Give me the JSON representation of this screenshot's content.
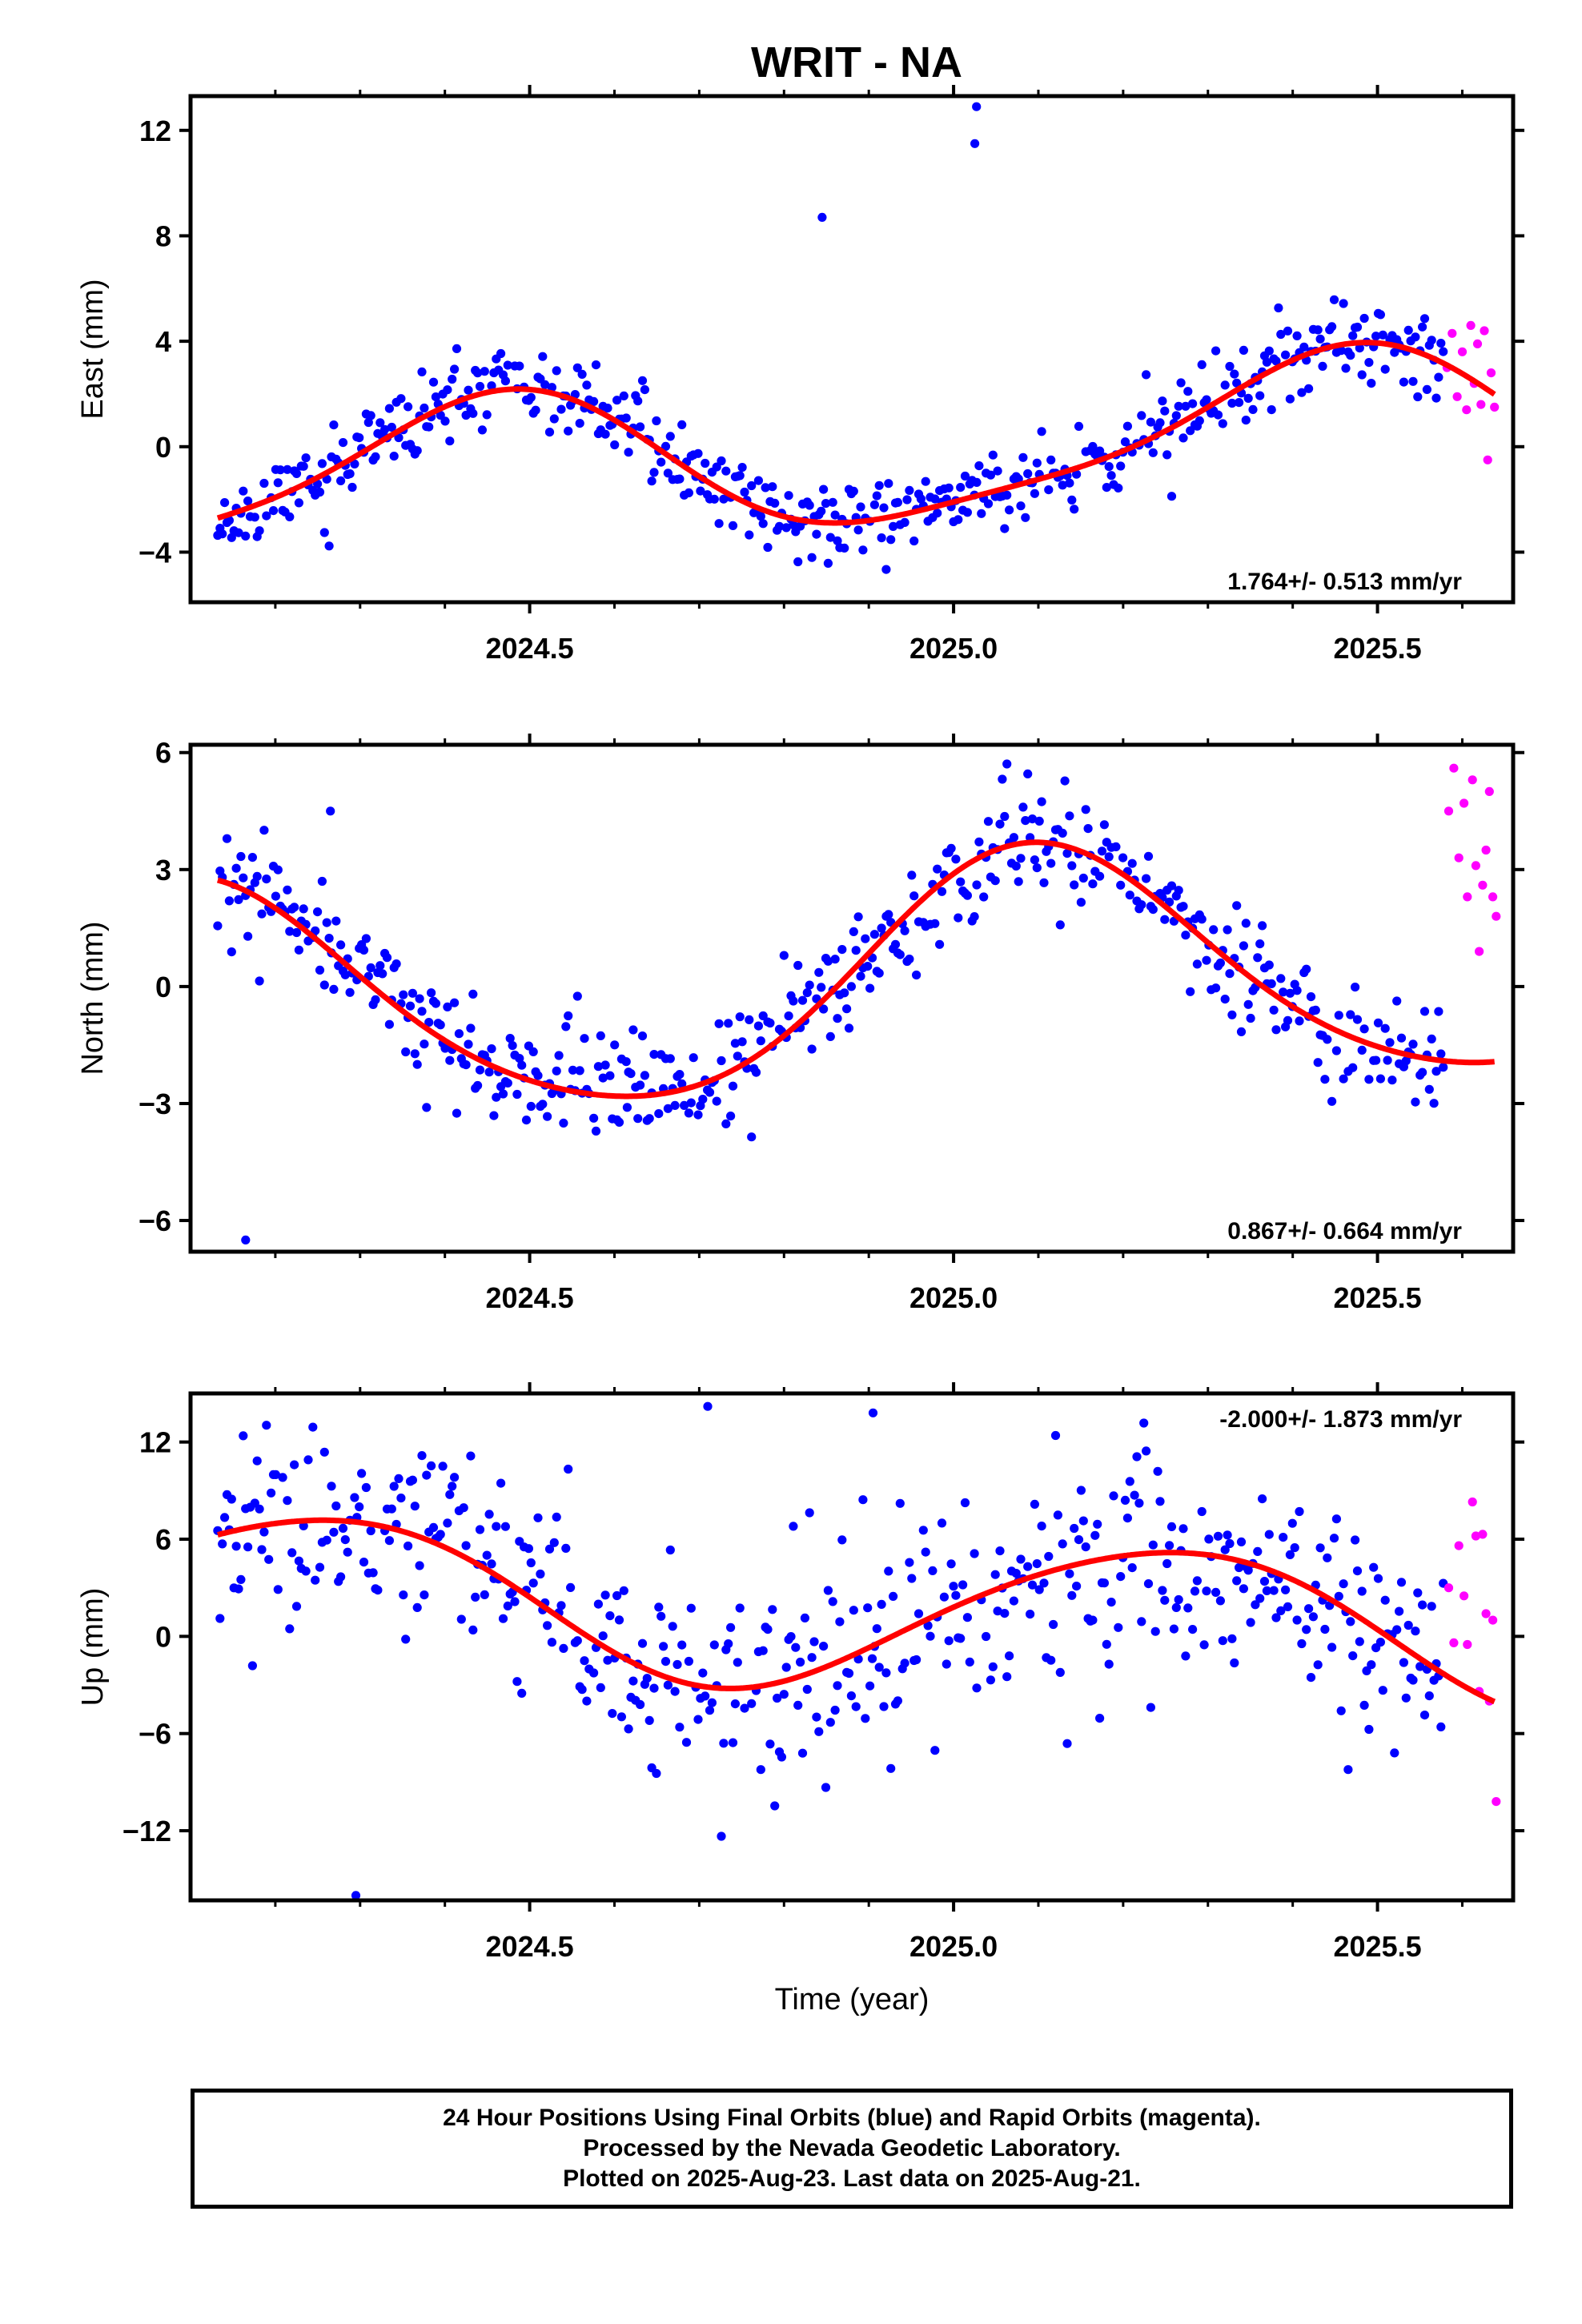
{
  "title": "WRIT - NA",
  "colors": {
    "final": "#0000ff",
    "rapid": "#ff00ff",
    "model": "#ff0000"
  },
  "footer": {
    "line1": "24 Hour Positions Using Final Orbits (blue) and Rapid Orbits (magenta).",
    "line2": "Processed by the Nevada Geodetic Laboratory.",
    "line3": "Plotted on 2025-Aug-23. Last data on 2025-Aug-21."
  },
  "chart_data": [
    {
      "type": "scatter",
      "component": "east",
      "ylabel": "East (mm)",
      "xlabel": "",
      "xlim": [
        2024.1,
        2025.66
      ],
      "ylim": [
        -5.9,
        13.3
      ],
      "yticks": [
        -4,
        0,
        4,
        8,
        12
      ],
      "xticks": [
        2024.5,
        2025.0,
        2025.5
      ],
      "xminor": [
        2024.2,
        2024.3,
        2024.4,
        2024.6,
        2024.7,
        2024.8,
        2024.9,
        2025.1,
        2025.2,
        2025.3,
        2025.4,
        2025.6
      ],
      "velocity": "1.764+/- 0.513 mm/yr",
      "velocity_pos": "bottom-right",
      "model": {
        "mean": -0.3,
        "rate": 1.764,
        "a1": -2.6,
        "b1": -0.8,
        "a2": 0.1,
        "b2": 0.6
      },
      "outliers": [
        [
          2024.845,
          8.7
        ],
        [
          2025.025,
          11.5
        ],
        [
          2025.027,
          12.9
        ]
      ],
      "noise": 0.75,
      "seed": 11,
      "rapid": [
        [
          2025.582,
          3.0
        ],
        [
          2025.588,
          4.3
        ],
        [
          2025.594,
          1.9
        ],
        [
          2025.6,
          3.6
        ],
        [
          2025.605,
          1.4
        ],
        [
          2025.61,
          4.6
        ],
        [
          2025.614,
          2.4
        ],
        [
          2025.618,
          3.9
        ],
        [
          2025.622,
          1.6
        ],
        [
          2025.626,
          4.4
        ],
        [
          2025.63,
          -0.5
        ],
        [
          2025.634,
          2.8
        ],
        [
          2025.638,
          1.5
        ]
      ]
    },
    {
      "type": "scatter",
      "component": "north",
      "ylabel": "North (mm)",
      "xlabel": "",
      "xlim": [
        2024.1,
        2025.66
      ],
      "ylim": [
        -6.8,
        6.2
      ],
      "yticks": [
        -6,
        -3,
        0,
        3,
        6
      ],
      "xticks": [
        2024.5,
        2025.0,
        2025.5
      ],
      "xminor": [
        2024.2,
        2024.3,
        2024.4,
        2024.6,
        2024.7,
        2024.8,
        2024.9,
        2025.1,
        2025.2,
        2025.3,
        2025.4,
        2025.6
      ],
      "velocity": "0.867+/- 0.664 mm/yr",
      "velocity_pos": "bottom-right",
      "model": {
        "mean": 0.15,
        "rate": 0.867,
        "a1": 0.9,
        "b1": 2.9,
        "a2": -0.2,
        "b2": 0.3
      },
      "outliers": [
        [
          2024.265,
          4.5
        ],
        [
          2024.165,
          -6.5
        ],
        [
          2024.615,
          -3.1
        ]
      ],
      "noise": 0.75,
      "seed": 23,
      "rapid": [
        [
          2025.584,
          4.5
        ],
        [
          2025.59,
          5.6
        ],
        [
          2025.596,
          3.3
        ],
        [
          2025.602,
          4.7
        ],
        [
          2025.606,
          2.3
        ],
        [
          2025.612,
          5.3
        ],
        [
          2025.616,
          3.1
        ],
        [
          2025.62,
          0.9
        ],
        [
          2025.624,
          2.6
        ],
        [
          2025.628,
          3.5
        ],
        [
          2025.632,
          5.0
        ],
        [
          2025.636,
          2.3
        ],
        [
          2025.64,
          1.8
        ]
      ]
    },
    {
      "type": "scatter",
      "component": "up",
      "ylabel": "Up (mm)",
      "xlabel": "Time (year)",
      "xlim": [
        2024.1,
        2025.66
      ],
      "ylim": [
        -16.3,
        15.0
      ],
      "yticks": [
        -12,
        -6,
        0,
        6,
        12
      ],
      "xticks": [
        2024.5,
        2025.0,
        2025.5
      ],
      "xminor": [
        2024.2,
        2024.3,
        2024.4,
        2024.6,
        2024.7,
        2024.8,
        2024.9,
        2025.1,
        2025.2,
        2025.3,
        2025.4,
        2025.6
      ],
      "velocity": "-2.000+/- 1.873 mm/yr",
      "velocity_pos": "top-right",
      "model": {
        "mean": 1.5,
        "rate": -2.0,
        "a1": -2.6,
        "b1": 3.9,
        "a2": 0.4,
        "b2": 0.2
      },
      "outliers": [
        [
          2024.295,
          -16.0
        ],
        [
          2024.71,
          14.2
        ],
        [
          2024.905,
          13.8
        ]
      ],
      "noise": 3.4,
      "seed": 37,
      "rapid": [
        [
          2025.584,
          3.0
        ],
        [
          2025.59,
          -0.4
        ],
        [
          2025.596,
          5.6
        ],
        [
          2025.602,
          2.5
        ],
        [
          2025.606,
          -0.5
        ],
        [
          2025.612,
          8.3
        ],
        [
          2025.616,
          6.2
        ],
        [
          2025.62,
          -3.4
        ],
        [
          2025.624,
          6.3
        ],
        [
          2025.628,
          1.4
        ],
        [
          2025.632,
          -4.0
        ],
        [
          2025.636,
          1.0
        ],
        [
          2025.64,
          -10.2
        ]
      ]
    }
  ]
}
